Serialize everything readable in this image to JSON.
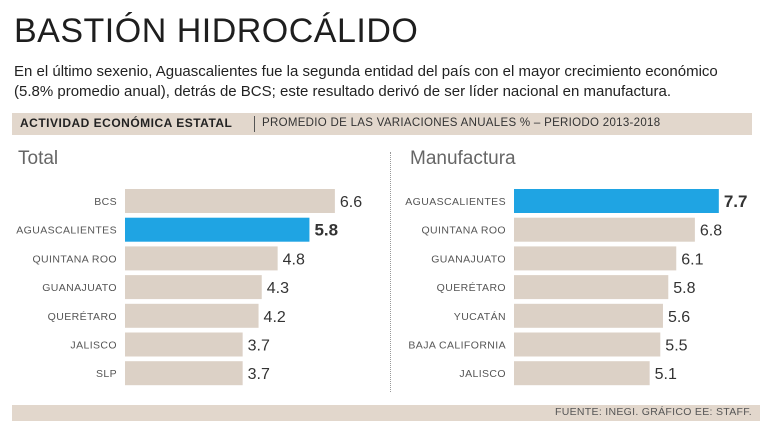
{
  "header": {
    "title": "BASTIÓN HIDROCÁLIDO",
    "subtitle": "En el último sexenio, Aguascalientes fue la segunda entidad del país con el mayor crecimiento económico (5.8% promedio anual), detrás de BCS; este resultado derivó de ser líder nacional en manufactura."
  },
  "band": {
    "label_bold": "ACTIVIDAD ECONÓMICA ESTATAL",
    "label_rest": "PROMEDIO DE LAS VARIACIONES ANUALES % – PERIODO 2013-2018"
  },
  "colors": {
    "bar": "#dcd1c6",
    "highlight": "#1fa4e3",
    "label": "#555555",
    "value": "#333333",
    "band": "#e2d7cc"
  },
  "chart_data": [
    {
      "type": "bar",
      "orientation": "horizontal",
      "title": "Total",
      "categories": [
        "BCS",
        "AGUASCALIENTES",
        "QUINTANA ROO",
        "GUANAJUATO",
        "QUERÉTARO",
        "JALISCO",
        "SLP"
      ],
      "values": [
        6.6,
        5.8,
        4.8,
        4.3,
        4.2,
        3.7,
        3.7
      ],
      "value_labels": [
        "6.6",
        "5.8",
        "4.8",
        "4.3",
        "4.2",
        "3.7",
        "3.7"
      ],
      "highlight": "AGUASCALIENTES"
    },
    {
      "type": "bar",
      "orientation": "horizontal",
      "title": "Manufactura",
      "categories": [
        "AGUASCALIENTES",
        "QUINTANA ROO",
        "GUANAJUATO",
        "QUERÉTARO",
        "YUCATÁN",
        "BAJA CALIFORNIA",
        "JALISCO"
      ],
      "values": [
        7.7,
        6.8,
        6.1,
        5.8,
        5.6,
        5.5,
        5.1
      ],
      "value_labels": [
        "7.7",
        "6.8",
        "6.1",
        "5.8",
        "5.6",
        "5.5",
        "5.1"
      ],
      "highlight": "AGUASCALIENTES"
    }
  ],
  "footer": {
    "source": "FUENTE: INEGI. GRÁFICO EE: STAFF."
  }
}
